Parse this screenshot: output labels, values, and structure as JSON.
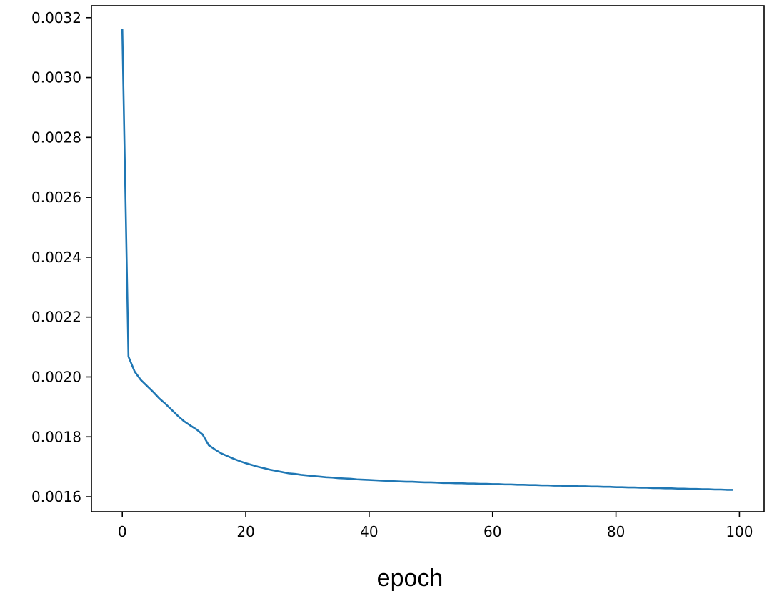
{
  "chart_data": {
    "type": "line",
    "title": "",
    "xlabel": "epoch",
    "ylabel": "",
    "xlim": [
      -5,
      104
    ],
    "ylim": [
      0.00155,
      0.00324
    ],
    "x_ticks": [
      0,
      20,
      40,
      60,
      80,
      100
    ],
    "x_tick_labels": [
      "0",
      "20",
      "40",
      "60",
      "80",
      "100"
    ],
    "y_ticks": [
      0.0016,
      0.0018,
      0.002,
      0.0022,
      0.0024,
      0.0026,
      0.0028,
      0.003,
      0.0032
    ],
    "y_tick_labels": [
      "0.0016",
      "0.0018",
      "0.0020",
      "0.0022",
      "0.0024",
      "0.0026",
      "0.0028",
      "0.0030",
      "0.0032"
    ],
    "grid": false,
    "series_color": "#1f77b4",
    "series": [
      {
        "x": [
          0,
          1,
          2,
          3,
          4,
          5,
          6,
          7,
          8,
          9,
          10,
          11,
          12,
          13,
          14,
          15,
          16,
          17,
          18,
          19,
          20,
          21,
          22,
          23,
          24,
          25,
          26,
          27,
          28,
          29,
          30,
          31,
          32,
          33,
          34,
          35,
          36,
          37,
          38,
          39,
          40,
          41,
          42,
          43,
          44,
          45,
          46,
          47,
          48,
          49,
          50,
          51,
          52,
          53,
          54,
          55,
          56,
          57,
          58,
          59,
          60,
          61,
          62,
          63,
          64,
          65,
          66,
          67,
          68,
          69,
          70,
          71,
          72,
          73,
          74,
          75,
          76,
          77,
          78,
          79,
          80,
          81,
          82,
          83,
          84,
          85,
          86,
          87,
          88,
          89,
          90,
          91,
          92,
          93,
          94,
          95,
          96,
          97,
          98,
          99
        ],
        "values": [
          0.003162,
          0.002068,
          0.002018,
          0.00199,
          0.00197,
          0.00195,
          0.001928,
          0.00191,
          0.00189,
          0.00187,
          0.001852,
          0.001838,
          0.001825,
          0.001808,
          0.001772,
          0.001758,
          0.001745,
          0.001736,
          0.001727,
          0.001719,
          0.001712,
          0.001706,
          0.0017,
          0.001695,
          0.00169,
          0.001686,
          0.001682,
          0.001678,
          0.001676,
          0.001673,
          0.001671,
          0.001669,
          0.001667,
          0.001665,
          0.001664,
          0.001662,
          0.001661,
          0.00166,
          0.001658,
          0.001657,
          0.001656,
          0.001655,
          0.001654,
          0.001653,
          0.001652,
          0.001651,
          0.00165,
          0.00165,
          0.001649,
          0.001648,
          0.001648,
          0.001647,
          0.001646,
          0.001646,
          0.001645,
          0.001645,
          0.001644,
          0.001644,
          0.001643,
          0.001643,
          0.001642,
          0.001642,
          0.001641,
          0.001641,
          0.00164,
          0.00164,
          0.001639,
          0.001639,
          0.001638,
          0.001638,
          0.001637,
          0.001637,
          0.001636,
          0.001636,
          0.001635,
          0.001635,
          0.001634,
          0.001634,
          0.001633,
          0.001633,
          0.001632,
          0.001632,
          0.001631,
          0.001631,
          0.00163,
          0.00163,
          0.001629,
          0.001629,
          0.001628,
          0.001628,
          0.001627,
          0.001627,
          0.001626,
          0.001626,
          0.001625,
          0.001625,
          0.001624,
          0.001624,
          0.001623,
          0.001623
        ]
      }
    ]
  }
}
